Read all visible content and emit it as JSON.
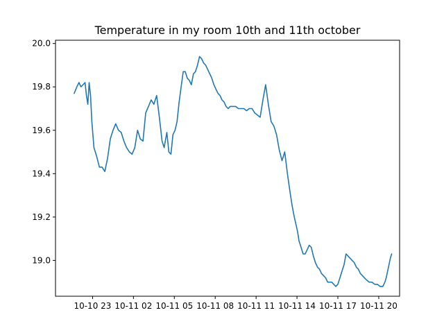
{
  "chart_data": {
    "type": "line",
    "title": "Temperature in my room 10th and 11th october",
    "xlabel": "",
    "ylabel": "",
    "x_unit": "hours since 10-10 00:00",
    "xlim": [
      20.28,
      21.53
    ],
    "ylim": [
      18.835,
      20.015
    ],
    "grid": false,
    "x_ticks": [
      {
        "value": 23,
        "label": "10-10 23"
      },
      {
        "value": 26,
        "label": "10-11 02"
      },
      {
        "value": 29,
        "label": "10-11 05"
      },
      {
        "value": 32,
        "label": "10-11 08"
      },
      {
        "value": 35,
        "label": "10-11 11"
      },
      {
        "value": 38,
        "label": "10-11 14"
      },
      {
        "value": 41,
        "label": "10-11 17"
      },
      {
        "value": 44,
        "label": "10-11 20"
      }
    ],
    "y_ticks": [
      {
        "value": 19.0,
        "label": "19.0"
      },
      {
        "value": 19.2,
        "label": "19.2"
      },
      {
        "value": 19.4,
        "label": "19.4"
      },
      {
        "value": 19.6,
        "label": "19.6"
      },
      {
        "value": 19.8,
        "label": "19.8"
      },
      {
        "value": 20.0,
        "label": "20.0"
      }
    ],
    "series": [
      {
        "color": "#1f77b4",
        "x": [
          21.65,
          21.85,
          22.0,
          22.15,
          22.3,
          22.45,
          22.55,
          22.65,
          22.75,
          22.85,
          22.95,
          23.1,
          23.3,
          23.5,
          23.7,
          23.9,
          24.1,
          24.3,
          24.5,
          24.7,
          24.9,
          25.1,
          25.3,
          25.5,
          25.7,
          25.9,
          26.1,
          26.3,
          26.5,
          26.7,
          26.9,
          27.1,
          27.3,
          27.5,
          27.7,
          27.9,
          28.1,
          28.25,
          28.45,
          28.6,
          28.75,
          28.9,
          29.05,
          29.2,
          29.35,
          29.5,
          29.65,
          29.8,
          29.95,
          30.1,
          30.25,
          30.4,
          30.55,
          30.7,
          30.85,
          31.0,
          31.15,
          31.3,
          31.45,
          31.6,
          31.75,
          31.9,
          32.05,
          32.2,
          32.35,
          32.5,
          32.65,
          32.8,
          32.95,
          33.1,
          33.3,
          33.5,
          33.7,
          33.9,
          34.1,
          34.3,
          34.5,
          34.7,
          34.9,
          35.1,
          35.3,
          35.5,
          35.7,
          35.9,
          36.1,
          36.3,
          36.5,
          36.7,
          36.9,
          37.1,
          37.3,
          37.5,
          37.65,
          37.8,
          37.95,
          38.05,
          38.15,
          38.3,
          38.45,
          38.6,
          38.75,
          38.9,
          39.05,
          39.2,
          39.35,
          39.5,
          39.65,
          39.8,
          39.95,
          40.1,
          40.25,
          40.4,
          40.55,
          40.7,
          40.85,
          41.0,
          41.15,
          41.3,
          41.45,
          41.6,
          41.75,
          41.9,
          42.05,
          42.2,
          42.35,
          42.5,
          42.65,
          42.8,
          42.95,
          43.1,
          43.3,
          43.5,
          43.7,
          43.9,
          44.1,
          44.3,
          44.45,
          44.55,
          44.65,
          44.75,
          44.85,
          44.95
        ],
        "y": [
          19.77,
          19.8,
          19.82,
          19.8,
          19.81,
          19.82,
          19.76,
          19.72,
          19.82,
          19.76,
          19.64,
          19.52,
          19.48,
          19.43,
          19.43,
          19.41,
          19.47,
          19.56,
          19.6,
          19.63,
          19.6,
          19.59,
          19.55,
          19.52,
          19.5,
          19.49,
          19.52,
          19.6,
          19.56,
          19.55,
          19.68,
          19.71,
          19.74,
          19.72,
          19.76,
          19.66,
          19.55,
          19.52,
          19.59,
          19.5,
          19.49,
          19.58,
          19.6,
          19.64,
          19.73,
          19.8,
          19.87,
          19.87,
          19.84,
          19.83,
          19.81,
          19.86,
          19.87,
          19.9,
          19.94,
          19.93,
          19.91,
          19.9,
          19.88,
          19.86,
          19.84,
          19.81,
          19.79,
          19.77,
          19.76,
          19.74,
          19.73,
          19.71,
          19.7,
          19.71,
          19.71,
          19.71,
          19.7,
          19.7,
          19.7,
          19.69,
          19.7,
          19.7,
          19.68,
          19.67,
          19.66,
          19.74,
          19.81,
          19.72,
          19.64,
          19.62,
          19.58,
          19.51,
          19.46,
          19.5,
          19.4,
          19.31,
          19.25,
          19.2,
          19.16,
          19.13,
          19.09,
          19.06,
          19.03,
          19.03,
          19.05,
          19.07,
          19.06,
          19.02,
          18.99,
          18.97,
          18.96,
          18.94,
          18.93,
          18.92,
          18.9,
          18.9,
          18.9,
          18.89,
          18.88,
          18.89,
          18.92,
          18.95,
          18.98,
          19.03,
          19.02,
          19.01,
          19.0,
          18.99,
          18.97,
          18.96,
          18.94,
          18.93,
          18.92,
          18.91,
          18.9,
          18.9,
          18.89,
          18.89,
          18.88,
          18.88,
          18.9,
          18.92,
          18.95,
          18.98,
          19.01,
          19.03
        ]
      }
    ]
  }
}
